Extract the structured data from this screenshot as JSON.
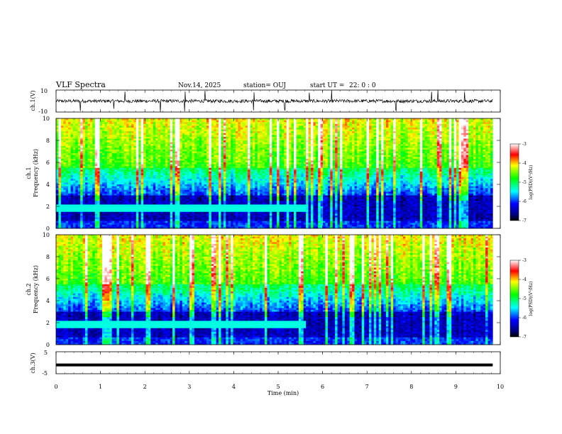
{
  "header": {
    "title": "VLF Spectra",
    "date": "Nov.14, 2025",
    "station": "station= OUJ",
    "start_label": "start  UT  =",
    "start_time": "22: 0  : 0"
  },
  "chart_data": [
    {
      "type": "line",
      "panel": "ch1 waveform",
      "ylabel": "ch.1(V)",
      "ylim": [
        -10,
        10
      ],
      "yticks": [
        "10",
        "-10"
      ],
      "xlim": [
        0,
        10
      ],
      "baseline": 0,
      "noise_amplitude": 1.5,
      "spikes_min": [
        0.55,
        1.3,
        1.55,
        2.35,
        2.9,
        3.35,
        4.45,
        5.15,
        5.7,
        6.2,
        7.65,
        8.45,
        8.6,
        9.2
      ],
      "color": "#000000"
    },
    {
      "type": "heatmap",
      "panel": "ch1 spectrogram",
      "ylabel_line1": "ch.1",
      "ylabel_line2": "Frequency  (kHz)",
      "ylim": [
        0,
        10
      ],
      "yticks": [
        "0",
        "2",
        "4",
        "6",
        "8",
        "10"
      ],
      "xlim": [
        0,
        10
      ],
      "data_extent_min": 9.83,
      "band_2khz_end_min": 5.6,
      "colorbar": {
        "label": "log(PSD)(V²/Hz)",
        "min": -7,
        "max": -3,
        "ticks": [
          "-3",
          "-4",
          "-5",
          "-6",
          "-7"
        ]
      }
    },
    {
      "type": "heatmap",
      "panel": "ch2 spectrogram",
      "ylabel_line1": "ch.2",
      "ylabel_line2": "Frequency  (kHz)",
      "ylim": [
        0,
        10
      ],
      "yticks": [
        "0",
        "2",
        "4",
        "6",
        "8",
        "10"
      ],
      "xlim": [
        0,
        10
      ],
      "data_extent_min": 9.83,
      "band_2khz_end_min": 5.6,
      "colorbar": {
        "label": "log(PSD)(V²/Hz)",
        "min": -7,
        "max": -3,
        "ticks": [
          "-3",
          "-4",
          "-5",
          "-6",
          "-7"
        ]
      }
    },
    {
      "type": "line",
      "panel": "ch3 waveform",
      "ylabel": "ch.3(V)",
      "ylim": [
        -5,
        5
      ],
      "yticks": [
        "5",
        "-5"
      ],
      "xlim": [
        0,
        10
      ],
      "baseline": -1,
      "color": "#000000"
    }
  ],
  "xaxis": {
    "label": "Time  (min)",
    "ticks": [
      "0",
      "1",
      "2",
      "3",
      "4",
      "5",
      "6",
      "7",
      "8",
      "9",
      "10"
    ]
  }
}
